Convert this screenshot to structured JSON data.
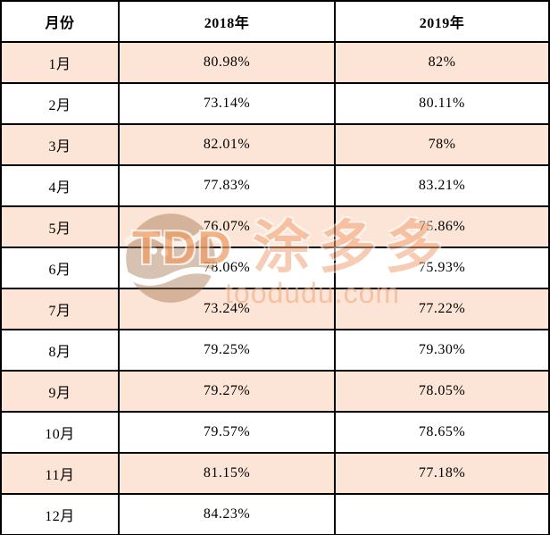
{
  "table": {
    "headers": [
      "月份",
      "2018年",
      "2019年"
    ],
    "rows": [
      [
        "1月",
        "80.98%",
        "82%"
      ],
      [
        "2月",
        "73.14%",
        "80.11%"
      ],
      [
        "3月",
        "82.01%",
        "78%"
      ],
      [
        "4月",
        "77.83%",
        "83.21%"
      ],
      [
        "5月",
        "76.07%",
        "75.86%"
      ],
      [
        "6月",
        "78.06%",
        "75.93%"
      ],
      [
        "7月",
        "73.24%",
        "77.22%"
      ],
      [
        "8月",
        "79.25%",
        "79.30%"
      ],
      [
        "9月",
        "79.27%",
        "78.05%"
      ],
      [
        "10月",
        "79.57%",
        "78.65%"
      ],
      [
        "11月",
        "81.15%",
        "77.18%"
      ],
      [
        "12月",
        "84.23%",
        ""
      ]
    ]
  },
  "watermark": {
    "logo_text": "TDD",
    "brand_text": "涂多多",
    "domain_text": "toodudu.com"
  },
  "colors": {
    "row_highlight": "#fce4d6",
    "border": "#000000",
    "watermark_orange": "#ef9c63",
    "watermark_globe": "#a87a55"
  },
  "chart_data": {
    "type": "table",
    "title": "",
    "categories": [
      "1月",
      "2月",
      "3月",
      "4月",
      "5月",
      "6月",
      "7月",
      "8月",
      "9月",
      "10月",
      "11月",
      "12月"
    ],
    "series": [
      {
        "name": "2018年",
        "values": [
          80.98,
          73.14,
          82.01,
          77.83,
          76.07,
          78.06,
          73.24,
          79.25,
          79.27,
          79.57,
          81.15,
          84.23
        ]
      },
      {
        "name": "2019年",
        "values": [
          82,
          80.11,
          78,
          83.21,
          75.86,
          75.93,
          77.22,
          79.3,
          78.05,
          78.65,
          77.18,
          null
        ]
      }
    ],
    "unit": "%",
    "layout": {
      "grid": true,
      "alternating_row_fill": "#fce4d6"
    }
  }
}
